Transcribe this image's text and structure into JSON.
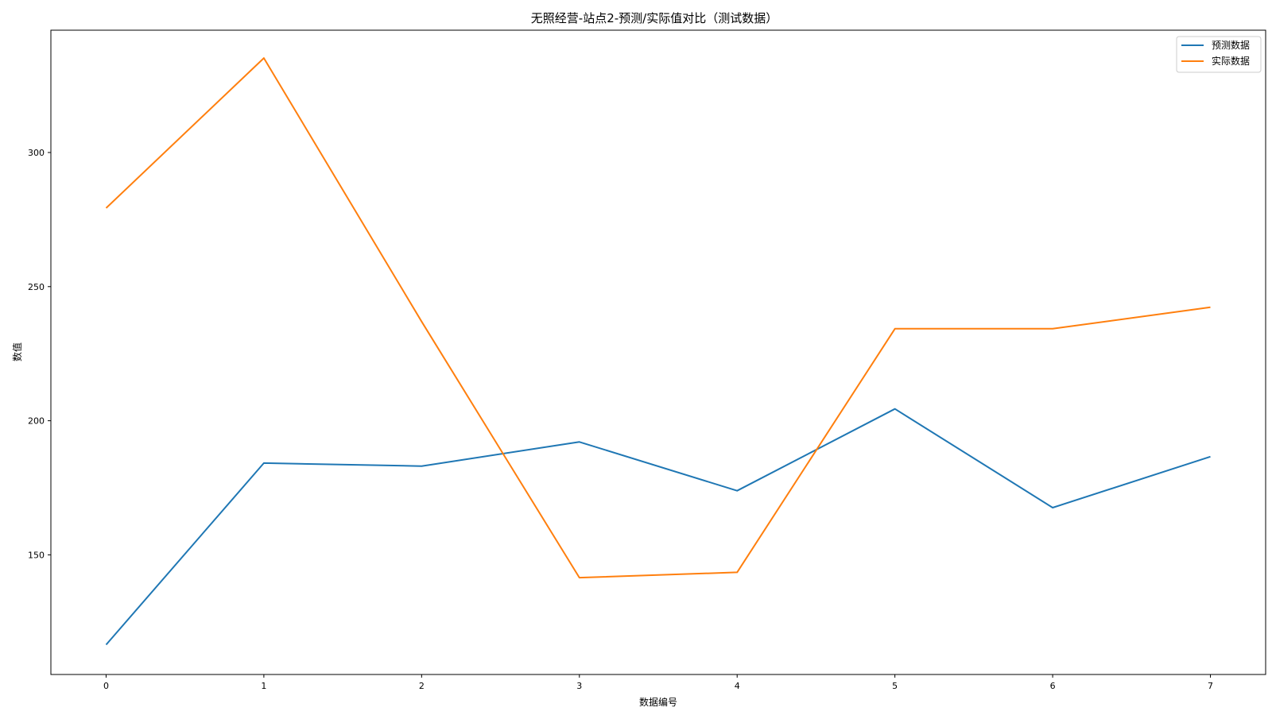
{
  "chart_data": {
    "type": "line",
    "title": "无照经营-站点2-预测/实际值对比（测试数据）",
    "xlabel": "数据编号",
    "ylabel": "数值",
    "x": [
      0,
      1,
      2,
      3,
      4,
      5,
      6,
      7
    ],
    "xticks": [
      "0",
      "1",
      "2",
      "3",
      "4",
      "5",
      "6",
      "7"
    ],
    "yticks": [
      "150",
      "200",
      "250",
      "300"
    ],
    "xlim": [
      -0.35,
      7.35
    ],
    "ylim": [
      105.4,
      345.6
    ],
    "grid": false,
    "legend_position": "top-right",
    "series": [
      {
        "name": "预测数据",
        "color": "#1f77b4",
        "values": [
          116.5,
          184.2,
          183.1,
          192.1,
          173.9,
          204.4,
          167.6,
          186.6
        ]
      },
      {
        "name": "实际数据",
        "color": "#ff7f0e",
        "values": [
          279.3,
          335.2,
          237.0,
          141.5,
          143.5,
          234.3,
          234.3,
          242.3
        ]
      }
    ]
  }
}
